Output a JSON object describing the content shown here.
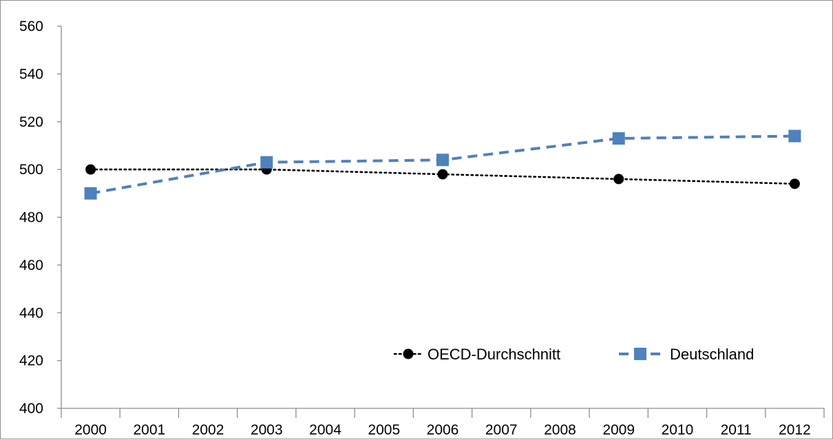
{
  "chart_data": {
    "type": "line",
    "title": "",
    "xlabel": "",
    "ylabel": "",
    "x": [
      "2000",
      "2001",
      "2002",
      "2003",
      "2004",
      "2005",
      "2006",
      "2007",
      "2008",
      "2009",
      "2010",
      "2011",
      "2012"
    ],
    "ylim": [
      400,
      560
    ],
    "yticks": [
      400,
      420,
      440,
      460,
      480,
      500,
      520,
      540,
      560
    ],
    "grid": false,
    "legend_position": "bottom-right",
    "series": [
      {
        "name": "OECD-Durchschnitt",
        "color": "#000000",
        "line_style": "dotted",
        "marker": "circle",
        "points": [
          {
            "x": "2000",
            "y": 500
          },
          {
            "x": "2003",
            "y": 500
          },
          {
            "x": "2006",
            "y": 498
          },
          {
            "x": "2009",
            "y": 496
          },
          {
            "x": "2012",
            "y": 494
          }
        ]
      },
      {
        "name": "Deutschland",
        "color": "#4f81bd",
        "line_style": "dashed",
        "marker": "square",
        "points": [
          {
            "x": "2000",
            "y": 490
          },
          {
            "x": "2003",
            "y": 503
          },
          {
            "x": "2006",
            "y": 504
          },
          {
            "x": "2009",
            "y": 513
          },
          {
            "x": "2012",
            "y": 514
          }
        ]
      }
    ]
  }
}
